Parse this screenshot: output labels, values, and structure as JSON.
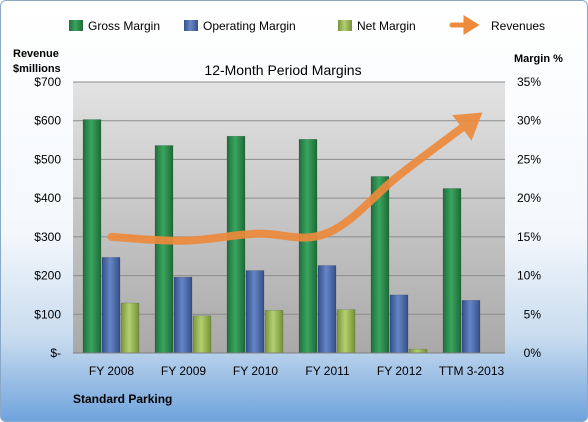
{
  "chart_data": {
    "type": "bar",
    "title": "12-Month Period Margins",
    "left_axis_label": [
      "Revenue",
      "$millions"
    ],
    "right_axis_label": "Margin %",
    "footer": "Standard Parking",
    "categories": [
      "FY 2008",
      "FY 2009",
      "FY 2010",
      "FY 2011",
      "FY 2012",
      "TTM 3-2013"
    ],
    "left_ticks": [
      "$-",
      "$100",
      "$200",
      "$300",
      "$400",
      "$500",
      "$600",
      "$700"
    ],
    "right_ticks": [
      "0%",
      "5%",
      "10%",
      "15%",
      "20%",
      "25%",
      "30%",
      "35%"
    ],
    "ylim_left": [
      0,
      700
    ],
    "ylim_right": [
      0,
      35
    ],
    "grid": true,
    "legend_position": "top",
    "series": [
      {
        "name": "Gross Margin",
        "axis": "left",
        "kind": "bar",
        "color": "#2e8b4f",
        "values": [
          603,
          536,
          560,
          552,
          456,
          425
        ]
      },
      {
        "name": "Operating Margin",
        "axis": "left",
        "kind": "bar",
        "color": "#4f6fad",
        "values": [
          247,
          196,
          213,
          226,
          150,
          136
        ]
      },
      {
        "name": "Net Margin",
        "axis": "left",
        "kind": "bar",
        "color": "#9bbb59",
        "values": [
          129,
          96,
          110,
          112,
          10,
          0
        ]
      },
      {
        "name": "Revenues",
        "axis": "right",
        "kind": "line",
        "color": "#ed8a3c",
        "values": [
          15,
          14.5,
          15.4,
          15.5,
          23,
          30
        ]
      }
    ]
  }
}
